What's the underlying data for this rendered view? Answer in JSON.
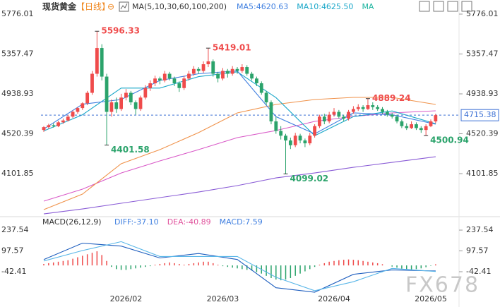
{
  "chart_data": {
    "type": "candlestick",
    "title": "现货黄金",
    "period": "【日线】",
    "indicator": "MA(5,10,30,60,100,200)",
    "legend": [
      {
        "label": "MA5:4620.63",
        "color": "#3f7fe0"
      },
      {
        "label": "MA10:4625.50",
        "color": "#1aa7c9"
      },
      {
        "label": "MA",
        "color": "#1fb5a0"
      }
    ],
    "up_color": "#ef4b4b",
    "down_color": "#2ba36b",
    "ylim": [
      3665,
      5887
    ],
    "yticks": [
      5776.01,
      5357.47,
      4938.93,
      4520.39,
      4101.85
    ],
    "categories": [
      null,
      null,
      null,
      null,
      null,
      null,
      null,
      null,
      null,
      null,
      null,
      null,
      null,
      null,
      null,
      null,
      null,
      "2026/02",
      null,
      null,
      null,
      null,
      null,
      null,
      null,
      null,
      null,
      null,
      null,
      null,
      null,
      null,
      null,
      null,
      null,
      null,
      null,
      "2026/03",
      null,
      null,
      null,
      null,
      null,
      null,
      null,
      null,
      null,
      null,
      null,
      null,
      null,
      null,
      null,
      null,
      null,
      null,
      null,
      null,
      null,
      null,
      "2026/04",
      null,
      null,
      null,
      null,
      null,
      null,
      null,
      null,
      null,
      null,
      null,
      null,
      null,
      null,
      null,
      null,
      null,
      null,
      null,
      "2026/05",
      null
    ],
    "candles": [
      [
        4560,
        4600,
        4540,
        4590
      ],
      [
        4590,
        4625,
        4575,
        4610
      ],
      [
        4610,
        4630,
        4585,
        4600
      ],
      [
        4600,
        4655,
        4590,
        4640
      ],
      [
        4640,
        4680,
        4625,
        4660
      ],
      [
        4660,
        4720,
        4650,
        4700
      ],
      [
        4700,
        4765,
        4685,
        4750
      ],
      [
        4750,
        4800,
        4730,
        4790
      ],
      [
        4790,
        4850,
        4770,
        4840
      ],
      [
        4840,
        4970,
        4820,
        4950
      ],
      [
        4950,
        5180,
        4930,
        5150
      ],
      [
        5150,
        5596.33,
        5120,
        5420
      ],
      [
        5420,
        5460,
        5080,
        5120
      ],
      [
        5120,
        5150,
        4401.58,
        4750
      ],
      [
        4750,
        4880,
        4700,
        4850
      ],
      [
        4850,
        4900,
        4740,
        4780
      ],
      [
        4780,
        4940,
        4760,
        4900
      ],
      [
        4900,
        4990,
        4870,
        4950
      ],
      [
        4950,
        4970,
        4820,
        4850
      ],
      [
        4850,
        4870,
        4720,
        4780
      ],
      [
        4780,
        4920,
        4760,
        4900
      ],
      [
        4900,
        5030,
        4880,
        5000
      ],
      [
        5000,
        5080,
        4970,
        5050
      ],
      [
        5050,
        5130,
        5020,
        5100
      ],
      [
        5100,
        5120,
        5040,
        5080
      ],
      [
        5080,
        5180,
        5060,
        5150
      ],
      [
        5150,
        5170,
        5080,
        5100
      ],
      [
        5100,
        5120,
        5020,
        5050
      ],
      [
        5050,
        5070,
        4960,
        5000
      ],
      [
        5000,
        5130,
        4980,
        5100
      ],
      [
        5100,
        5180,
        5080,
        5150
      ],
      [
        5150,
        5230,
        5130,
        5200
      ],
      [
        5200,
        5220,
        5150,
        5180
      ],
      [
        5180,
        5280,
        5160,
        5250
      ],
      [
        5250,
        5419.01,
        5220,
        5280
      ],
      [
        5280,
        5300,
        5120,
        5150
      ],
      [
        5150,
        5170,
        5060,
        5100
      ],
      [
        5100,
        5210,
        5080,
        5180
      ],
      [
        5180,
        5200,
        5110,
        5150
      ],
      [
        5150,
        5230,
        5130,
        5200
      ],
      [
        5200,
        5220,
        5150,
        5180
      ],
      [
        5180,
        5250,
        5160,
        5220
      ],
      [
        5220,
        5240,
        5130,
        5150
      ],
      [
        5150,
        5170,
        5080,
        5100
      ],
      [
        5100,
        5120,
        5020,
        5050
      ],
      [
        5050,
        5070,
        4930,
        4950
      ],
      [
        4950,
        4970,
        4820,
        4850
      ],
      [
        4850,
        4870,
        4620,
        4650
      ],
      [
        4650,
        4700,
        4520,
        4550
      ],
      [
        4550,
        4600,
        4460,
        4500
      ],
      [
        4500,
        4520,
        4099.02,
        4450
      ],
      [
        4450,
        4480,
        4360,
        4400
      ],
      [
        4400,
        4530,
        4380,
        4500
      ],
      [
        4500,
        4520,
        4420,
        4450
      ],
      [
        4450,
        4470,
        4380,
        4420
      ],
      [
        4420,
        4530,
        4400,
        4500
      ],
      [
        4500,
        4620,
        4480,
        4600
      ],
      [
        4600,
        4720,
        4580,
        4700
      ],
      [
        4700,
        4730,
        4620,
        4650
      ],
      [
        4650,
        4750,
        4630,
        4720
      ],
      [
        4720,
        4790,
        4700,
        4750
      ],
      [
        4750,
        4770,
        4680,
        4700
      ],
      [
        4700,
        4720,
        4650,
        4680
      ],
      [
        4680,
        4770,
        4660,
        4750
      ],
      [
        4750,
        4810,
        4730,
        4780
      ],
      [
        4780,
        4830,
        4760,
        4800
      ],
      [
        4800,
        4820,
        4750,
        4780
      ],
      [
        4780,
        4889.24,
        4770,
        4820
      ],
      [
        4820,
        4850,
        4770,
        4800
      ],
      [
        4800,
        4820,
        4760,
        4780
      ],
      [
        4780,
        4800,
        4730,
        4750
      ],
      [
        4750,
        4770,
        4700,
        4720
      ],
      [
        4720,
        4740,
        4680,
        4700
      ],
      [
        4700,
        4720,
        4630,
        4650
      ],
      [
        4650,
        4670,
        4580,
        4600
      ],
      [
        4600,
        4630,
        4560,
        4580
      ],
      [
        4580,
        4650,
        4570,
        4620
      ],
      [
        4620,
        4640,
        4560,
        4580
      ],
      [
        4580,
        4600,
        4530,
        4560
      ],
      [
        4560,
        4620,
        4500.94,
        4600
      ],
      [
        4600,
        4670,
        4590,
        4650
      ],
      [
        4650,
        4730,
        4630,
        4715.38
      ]
    ],
    "ma_series": [
      {
        "color": "#8a5cd6",
        "x": [
          0,
          8,
          16,
          24,
          32,
          40,
          48,
          56,
          64,
          72,
          81
        ],
        "values": [
          3679,
          3731,
          3791,
          3850,
          3909,
          3976,
          4057,
          4109,
          4168,
          4220,
          4279
        ]
      },
      {
        "color": "#d95ac8",
        "x": [
          0,
          8,
          16,
          24,
          32,
          40,
          48,
          56,
          64,
          72,
          81
        ],
        "values": [
          3813,
          3939,
          4109,
          4235,
          4354,
          4480,
          4554,
          4650,
          4702,
          4739,
          4761
        ]
      },
      {
        "color": "#f0924a",
        "x": [
          0,
          8,
          16,
          24,
          32,
          40,
          48,
          56,
          64,
          72,
          81
        ],
        "values": [
          3724,
          3887,
          4206,
          4354,
          4532,
          4739,
          4828,
          4880,
          4902,
          4902,
          4828
        ]
      },
      {
        "color": "#1aa7c9",
        "x": [
          0,
          8,
          16,
          24,
          32,
          40,
          48,
          56,
          64,
          72,
          81
        ],
        "values": [
          4550,
          4720,
          5000,
          5000,
          5120,
          5170,
          4900,
          4500,
          4700,
          4760,
          4625.5
        ]
      },
      {
        "color": "#3f7fe0",
        "x": [
          0,
          8,
          16,
          24,
          32,
          40,
          48,
          56,
          64,
          72,
          81
        ],
        "values": [
          4570,
          4830,
          4880,
          5080,
          5150,
          5180,
          4700,
          4520,
          4740,
          4720,
          4620.63
        ]
      }
    ],
    "macd": {
      "title": "MACD(26,12,9)",
      "legend": [
        {
          "label": "DIFF:-37.10",
          "color": "#3f7fe0"
        },
        {
          "label": "DEA:-40.89",
          "color": "#e0529c"
        },
        {
          "label": "MACD:7.59",
          "color": "#3f7fe0"
        }
      ],
      "ylim": [
        -256,
        290
      ],
      "yticks": [
        237.54,
        97.57,
        -42.41
      ],
      "histogram": [
        10,
        15,
        20,
        25,
        30,
        35,
        45,
        55,
        65,
        75,
        85,
        95,
        70,
        30,
        -10,
        -25,
        -30,
        -30,
        -25,
        -20,
        -15,
        -10,
        -5,
        5,
        10,
        15,
        20,
        15,
        10,
        5,
        10,
        15,
        20,
        25,
        25,
        15,
        5,
        -5,
        -10,
        -15,
        -20,
        -25,
        -30,
        -35,
        -45,
        -55,
        -70,
        -85,
        -95,
        -100,
        -95,
        -85,
        -70,
        -55,
        -40,
        -25,
        -10,
        5,
        15,
        25,
        30,
        35,
        38,
        40,
        38,
        35,
        30,
        25,
        20,
        15,
        8,
        0,
        -8,
        -15,
        -22,
        -25,
        -28,
        -25,
        -20,
        -12,
        -3,
        7.59
      ],
      "lines": [
        {
          "color": "#1f5fbf",
          "x": [
            0,
            8,
            16,
            24,
            32,
            40,
            48,
            56,
            64,
            72,
            81
          ],
          "values": [
            40,
            150,
            130,
            50,
            80,
            40,
            -150,
            -180,
            -60,
            -30,
            -37.1
          ]
        },
        {
          "color": "#59b6e8",
          "x": [
            0,
            8,
            16,
            24,
            32,
            40,
            48,
            56,
            64,
            72,
            81
          ],
          "values": [
            30,
            100,
            160,
            60,
            60,
            60,
            -80,
            -170,
            -110,
            -20,
            -40.89
          ]
        }
      ]
    },
    "watermark": "FX678"
  }
}
